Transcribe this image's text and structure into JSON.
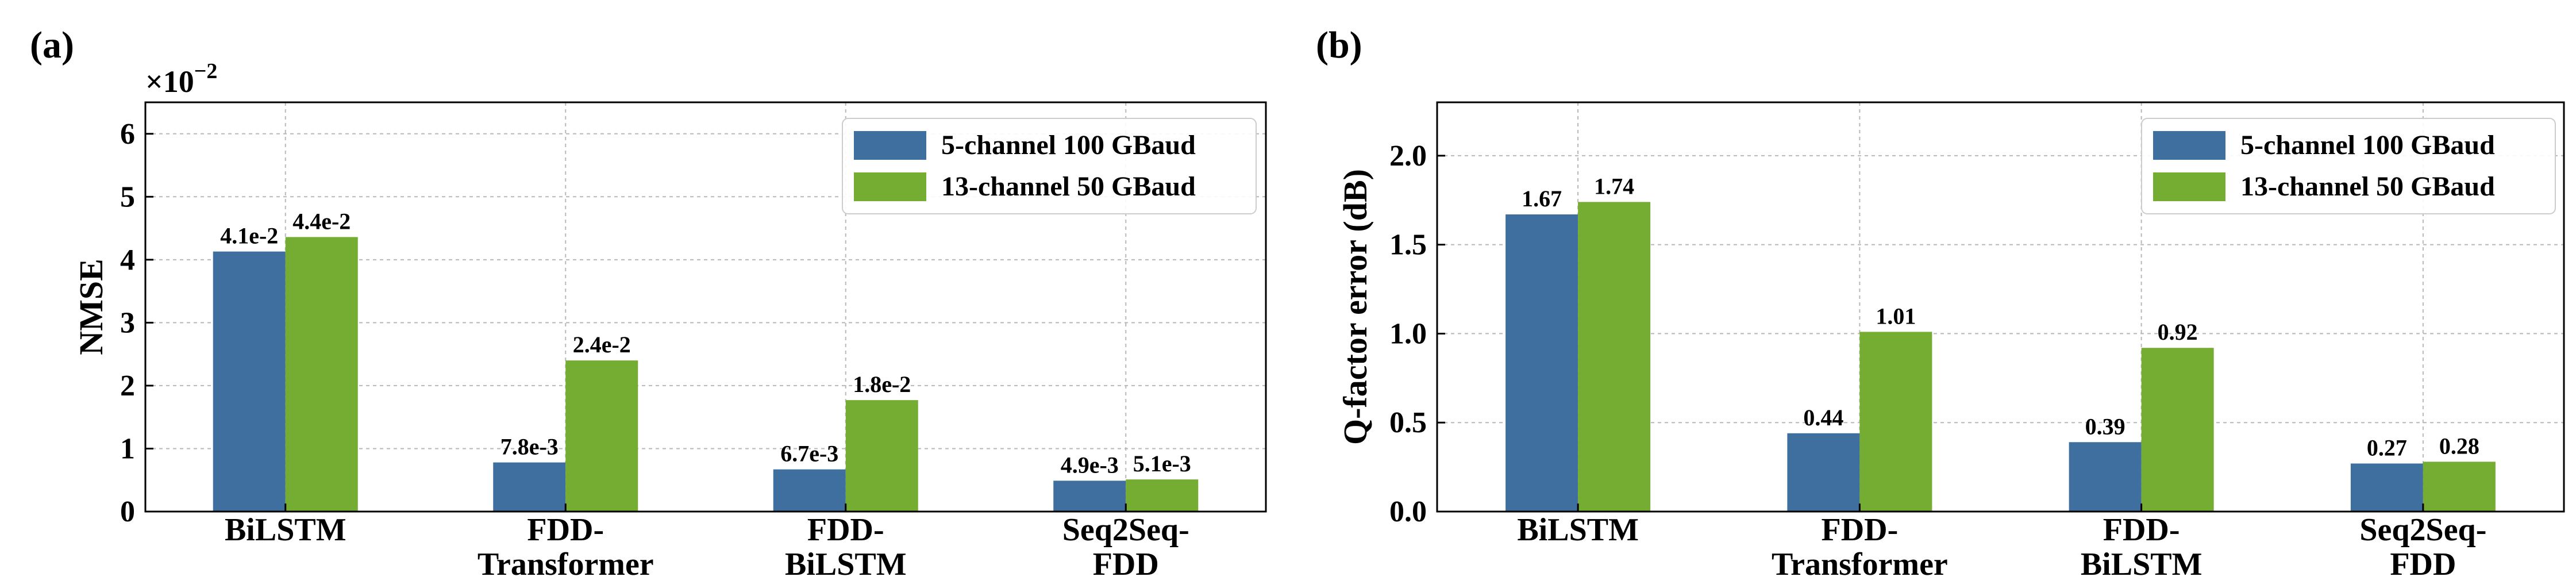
{
  "colors": {
    "series1": "#3f6f9f",
    "series2": "#74ad32"
  },
  "chart_data": [
    {
      "type": "bar",
      "panel_label": "(a)",
      "ylabel": "NMSE",
      "scale_label": "×10",
      "scale_exponent": "−2",
      "ylim": [
        0,
        6.5
      ],
      "yticks": [
        0,
        1,
        2,
        3,
        4,
        5,
        6
      ],
      "ytick_labels": [
        "0",
        "1",
        "2",
        "3",
        "4",
        "5",
        "6"
      ],
      "categories": [
        [
          "BiLSTM"
        ],
        [
          "FDD-",
          "Transformer"
        ],
        [
          "FDD-",
          "BiLSTM"
        ],
        [
          "Seq2Seq-",
          "FDD"
        ]
      ],
      "series": [
        {
          "name": "5-channel 100 GBaud",
          "values": [
            4.13,
            0.78,
            0.67,
            0.49
          ],
          "labels": [
            "4.1e-2",
            "7.8e-3",
            "6.7e-3",
            "4.9e-3"
          ]
        },
        {
          "name": "13-channel 50 GBaud",
          "values": [
            4.36,
            2.4,
            1.77,
            0.51
          ],
          "labels": [
            "4.4e-2",
            "2.4e-2",
            "1.8e-2",
            "5.1e-3"
          ]
        }
      ],
      "legend": "top-right",
      "grid": true
    },
    {
      "type": "bar",
      "panel_label": "(b)",
      "ylabel": "Q-factor error (dB)",
      "ylim": [
        0,
        2.3
      ],
      "yticks": [
        0,
        0.5,
        1.0,
        1.5,
        2.0
      ],
      "ytick_labels": [
        "0.0",
        "0.5",
        "1.0",
        "1.5",
        "2.0"
      ],
      "categories": [
        [
          "BiLSTM"
        ],
        [
          "FDD-",
          "Transformer"
        ],
        [
          "FDD-",
          "BiLSTM"
        ],
        [
          "Seq2Seq-",
          "FDD"
        ]
      ],
      "series": [
        {
          "name": "5-channel 100 GBaud",
          "values": [
            1.67,
            0.44,
            0.39,
            0.27
          ],
          "labels": [
            "1.67",
            "0.44",
            "0.39",
            "0.27"
          ]
        },
        {
          "name": "13-channel 50 GBaud",
          "values": [
            1.74,
            1.01,
            0.92,
            0.28
          ],
          "labels": [
            "1.74",
            "1.01",
            "0.92",
            "0.28"
          ]
        }
      ],
      "legend": "top-right",
      "grid": true
    }
  ]
}
